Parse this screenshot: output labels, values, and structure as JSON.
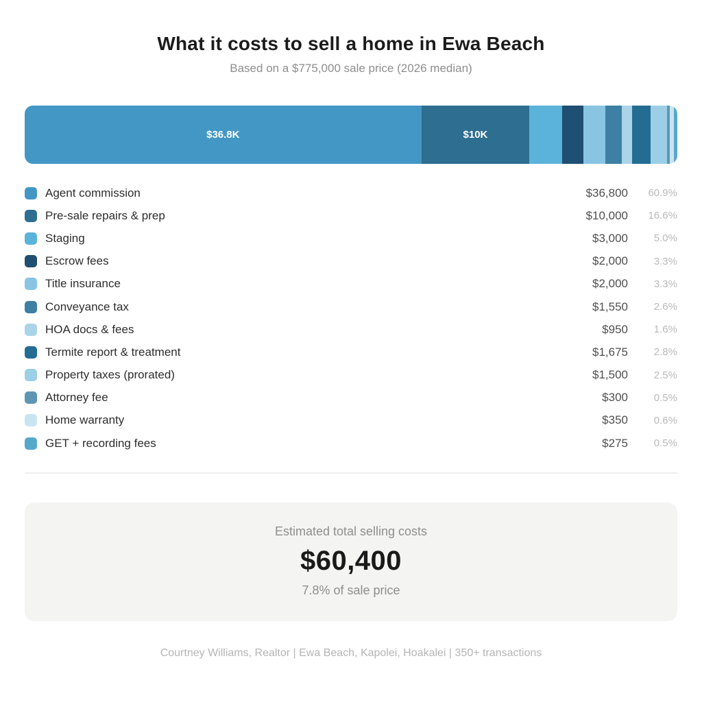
{
  "header": {
    "title": "What it costs to sell a home in Ewa Beach",
    "subtitle": "Based on a $775,000 sale price (2026 median)"
  },
  "chart_data": {
    "type": "bar",
    "variant": "horizontal-stacked",
    "title": "What it costs to sell a home in Ewa Beach",
    "subtitle": "Based on a $775,000 sale price (2026 median)",
    "legend_position": "below-bar",
    "categories": [
      "Agent commission",
      "Pre-sale repairs & prep",
      "Staging",
      "Escrow fees",
      "Title insurance",
      "Conveyance tax",
      "HOA docs & fees",
      "Termite report & treatment",
      "Property taxes (prorated)",
      "Attorney fee",
      "Home warranty",
      "GET + recording fees"
    ],
    "values": [
      36800,
      10000,
      3000,
      2000,
      2000,
      1550,
      950,
      1675,
      1500,
      300,
      350,
      275
    ],
    "display_values": [
      "$36,800",
      "$10,000",
      "$3,000",
      "$2,000",
      "$2,000",
      "$1,550",
      "$950",
      "$1,675",
      "$1,500",
      "$300",
      "$350",
      "$275"
    ],
    "percents": [
      60.9,
      16.6,
      5.0,
      3.3,
      3.3,
      2.6,
      1.6,
      2.8,
      2.5,
      0.5,
      0.6,
      0.5
    ],
    "display_percents": [
      "60.9%",
      "16.6%",
      "5.0%",
      "3.3%",
      "3.3%",
      "2.6%",
      "1.6%",
      "2.8%",
      "2.5%",
      "0.5%",
      "0.6%",
      "0.5%"
    ],
    "segment_colors": [
      "#4397C5",
      "#2E6E90",
      "#5CB3D9",
      "#1F4F72",
      "#89C5E3",
      "#3D80A4",
      "#ABD4E9",
      "#256C93",
      "#9CCFE6",
      "#5C96B2",
      "#C9E4F1",
      "#57A9CB"
    ],
    "segment_labels": [
      "$36.8K",
      "$10K",
      "",
      "",
      "",
      "",
      "",
      "",
      "",
      "",
      "",
      ""
    ],
    "stack_total": 60400
  },
  "summary": {
    "label": "Estimated total selling costs",
    "value": "$60,400",
    "note": "7.8% of sale price"
  },
  "footer": {
    "text": "Courtney Williams, Realtor | Ewa Beach, Kapolei, Hoakalei | 350+ transactions"
  }
}
